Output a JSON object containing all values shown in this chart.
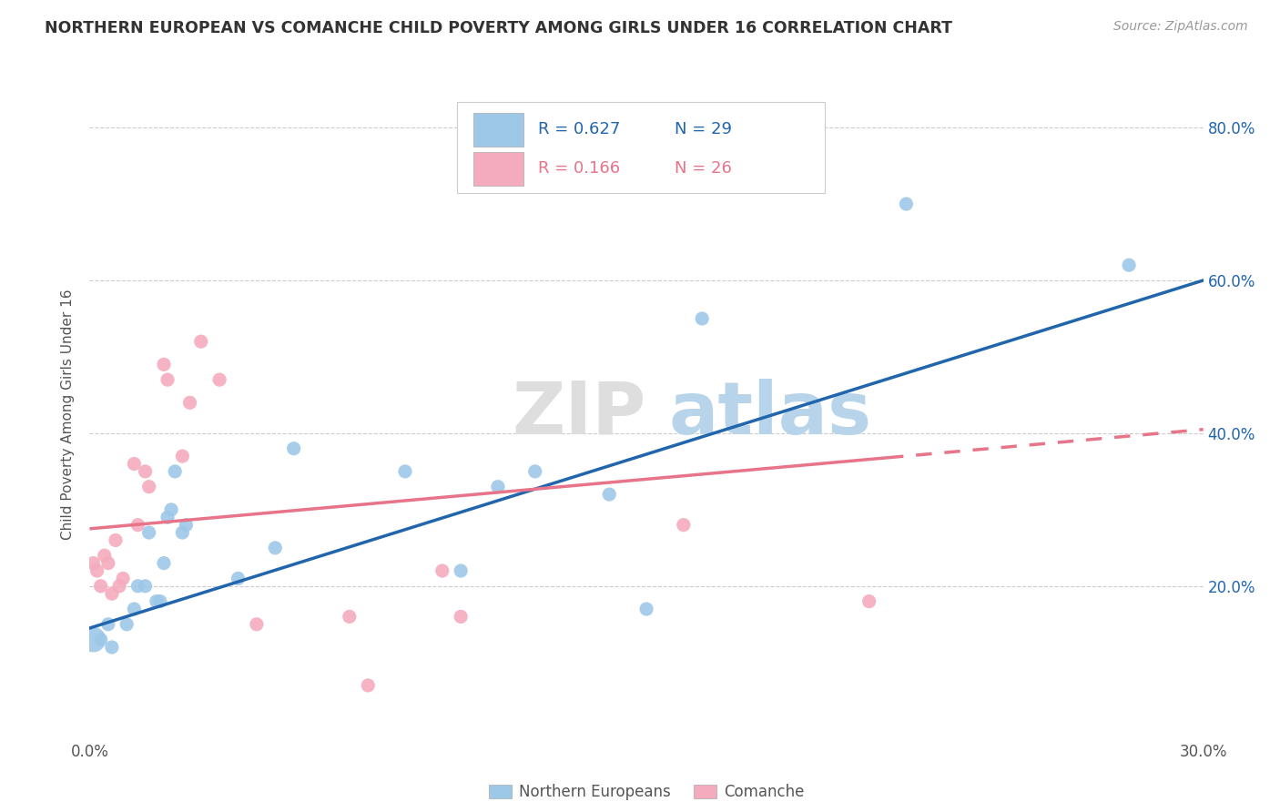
{
  "title": "NORTHERN EUROPEAN VS COMANCHE CHILD POVERTY AMONG GIRLS UNDER 16 CORRELATION CHART",
  "source": "Source: ZipAtlas.com",
  "ylabel": "Child Poverty Among Girls Under 16",
  "xlim": [
    0.0,
    0.3
  ],
  "ylim": [
    0.0,
    0.85
  ],
  "x_ticks": [
    0.0,
    0.05,
    0.1,
    0.15,
    0.2,
    0.25,
    0.3
  ],
  "x_tick_labels": [
    "0.0%",
    "",
    "",
    "",
    "",
    "",
    "30.0%"
  ],
  "y_ticks": [
    0.0,
    0.2,
    0.4,
    0.6,
    0.8
  ],
  "y_tick_labels": [
    "",
    "20.0%",
    "40.0%",
    "60.0%",
    "80.0%"
  ],
  "blue_R": "0.627",
  "blue_N": "29",
  "pink_R": "0.166",
  "pink_N": "26",
  "blue_color": "#9EC8E8",
  "pink_color": "#F4ABBE",
  "blue_line_color": "#2166AC",
  "pink_line_color": "#E8748A",
  "blue_points": [
    [
      0.001,
      0.13
    ],
    [
      0.003,
      0.13
    ],
    [
      0.005,
      0.15
    ],
    [
      0.006,
      0.12
    ],
    [
      0.01,
      0.15
    ],
    [
      0.012,
      0.17
    ],
    [
      0.013,
      0.2
    ],
    [
      0.015,
      0.2
    ],
    [
      0.016,
      0.27
    ],
    [
      0.018,
      0.18
    ],
    [
      0.019,
      0.18
    ],
    [
      0.02,
      0.23
    ],
    [
      0.021,
      0.29
    ],
    [
      0.022,
      0.3
    ],
    [
      0.023,
      0.35
    ],
    [
      0.025,
      0.27
    ],
    [
      0.026,
      0.28
    ],
    [
      0.04,
      0.21
    ],
    [
      0.05,
      0.25
    ],
    [
      0.055,
      0.38
    ],
    [
      0.085,
      0.35
    ],
    [
      0.1,
      0.22
    ],
    [
      0.11,
      0.33
    ],
    [
      0.12,
      0.35
    ],
    [
      0.14,
      0.32
    ],
    [
      0.15,
      0.17
    ],
    [
      0.165,
      0.55
    ],
    [
      0.22,
      0.7
    ],
    [
      0.28,
      0.62
    ]
  ],
  "pink_points": [
    [
      0.001,
      0.23
    ],
    [
      0.002,
      0.22
    ],
    [
      0.003,
      0.2
    ],
    [
      0.004,
      0.24
    ],
    [
      0.005,
      0.23
    ],
    [
      0.006,
      0.19
    ],
    [
      0.007,
      0.26
    ],
    [
      0.008,
      0.2
    ],
    [
      0.009,
      0.21
    ],
    [
      0.012,
      0.36
    ],
    [
      0.013,
      0.28
    ],
    [
      0.015,
      0.35
    ],
    [
      0.016,
      0.33
    ],
    [
      0.02,
      0.49
    ],
    [
      0.021,
      0.47
    ],
    [
      0.025,
      0.37
    ],
    [
      0.027,
      0.44
    ],
    [
      0.03,
      0.52
    ],
    [
      0.035,
      0.47
    ],
    [
      0.045,
      0.15
    ],
    [
      0.07,
      0.16
    ],
    [
      0.075,
      0.07
    ],
    [
      0.095,
      0.22
    ],
    [
      0.1,
      0.16
    ],
    [
      0.16,
      0.28
    ],
    [
      0.21,
      0.18
    ]
  ],
  "blue_line": [
    [
      0.0,
      0.145
    ],
    [
      0.3,
      0.6
    ]
  ],
  "pink_line_solid": [
    [
      0.0,
      0.275
    ],
    [
      0.215,
      0.368
    ]
  ],
  "pink_line_dashed": [
    [
      0.215,
      0.368
    ],
    [
      0.3,
      0.405
    ]
  ]
}
